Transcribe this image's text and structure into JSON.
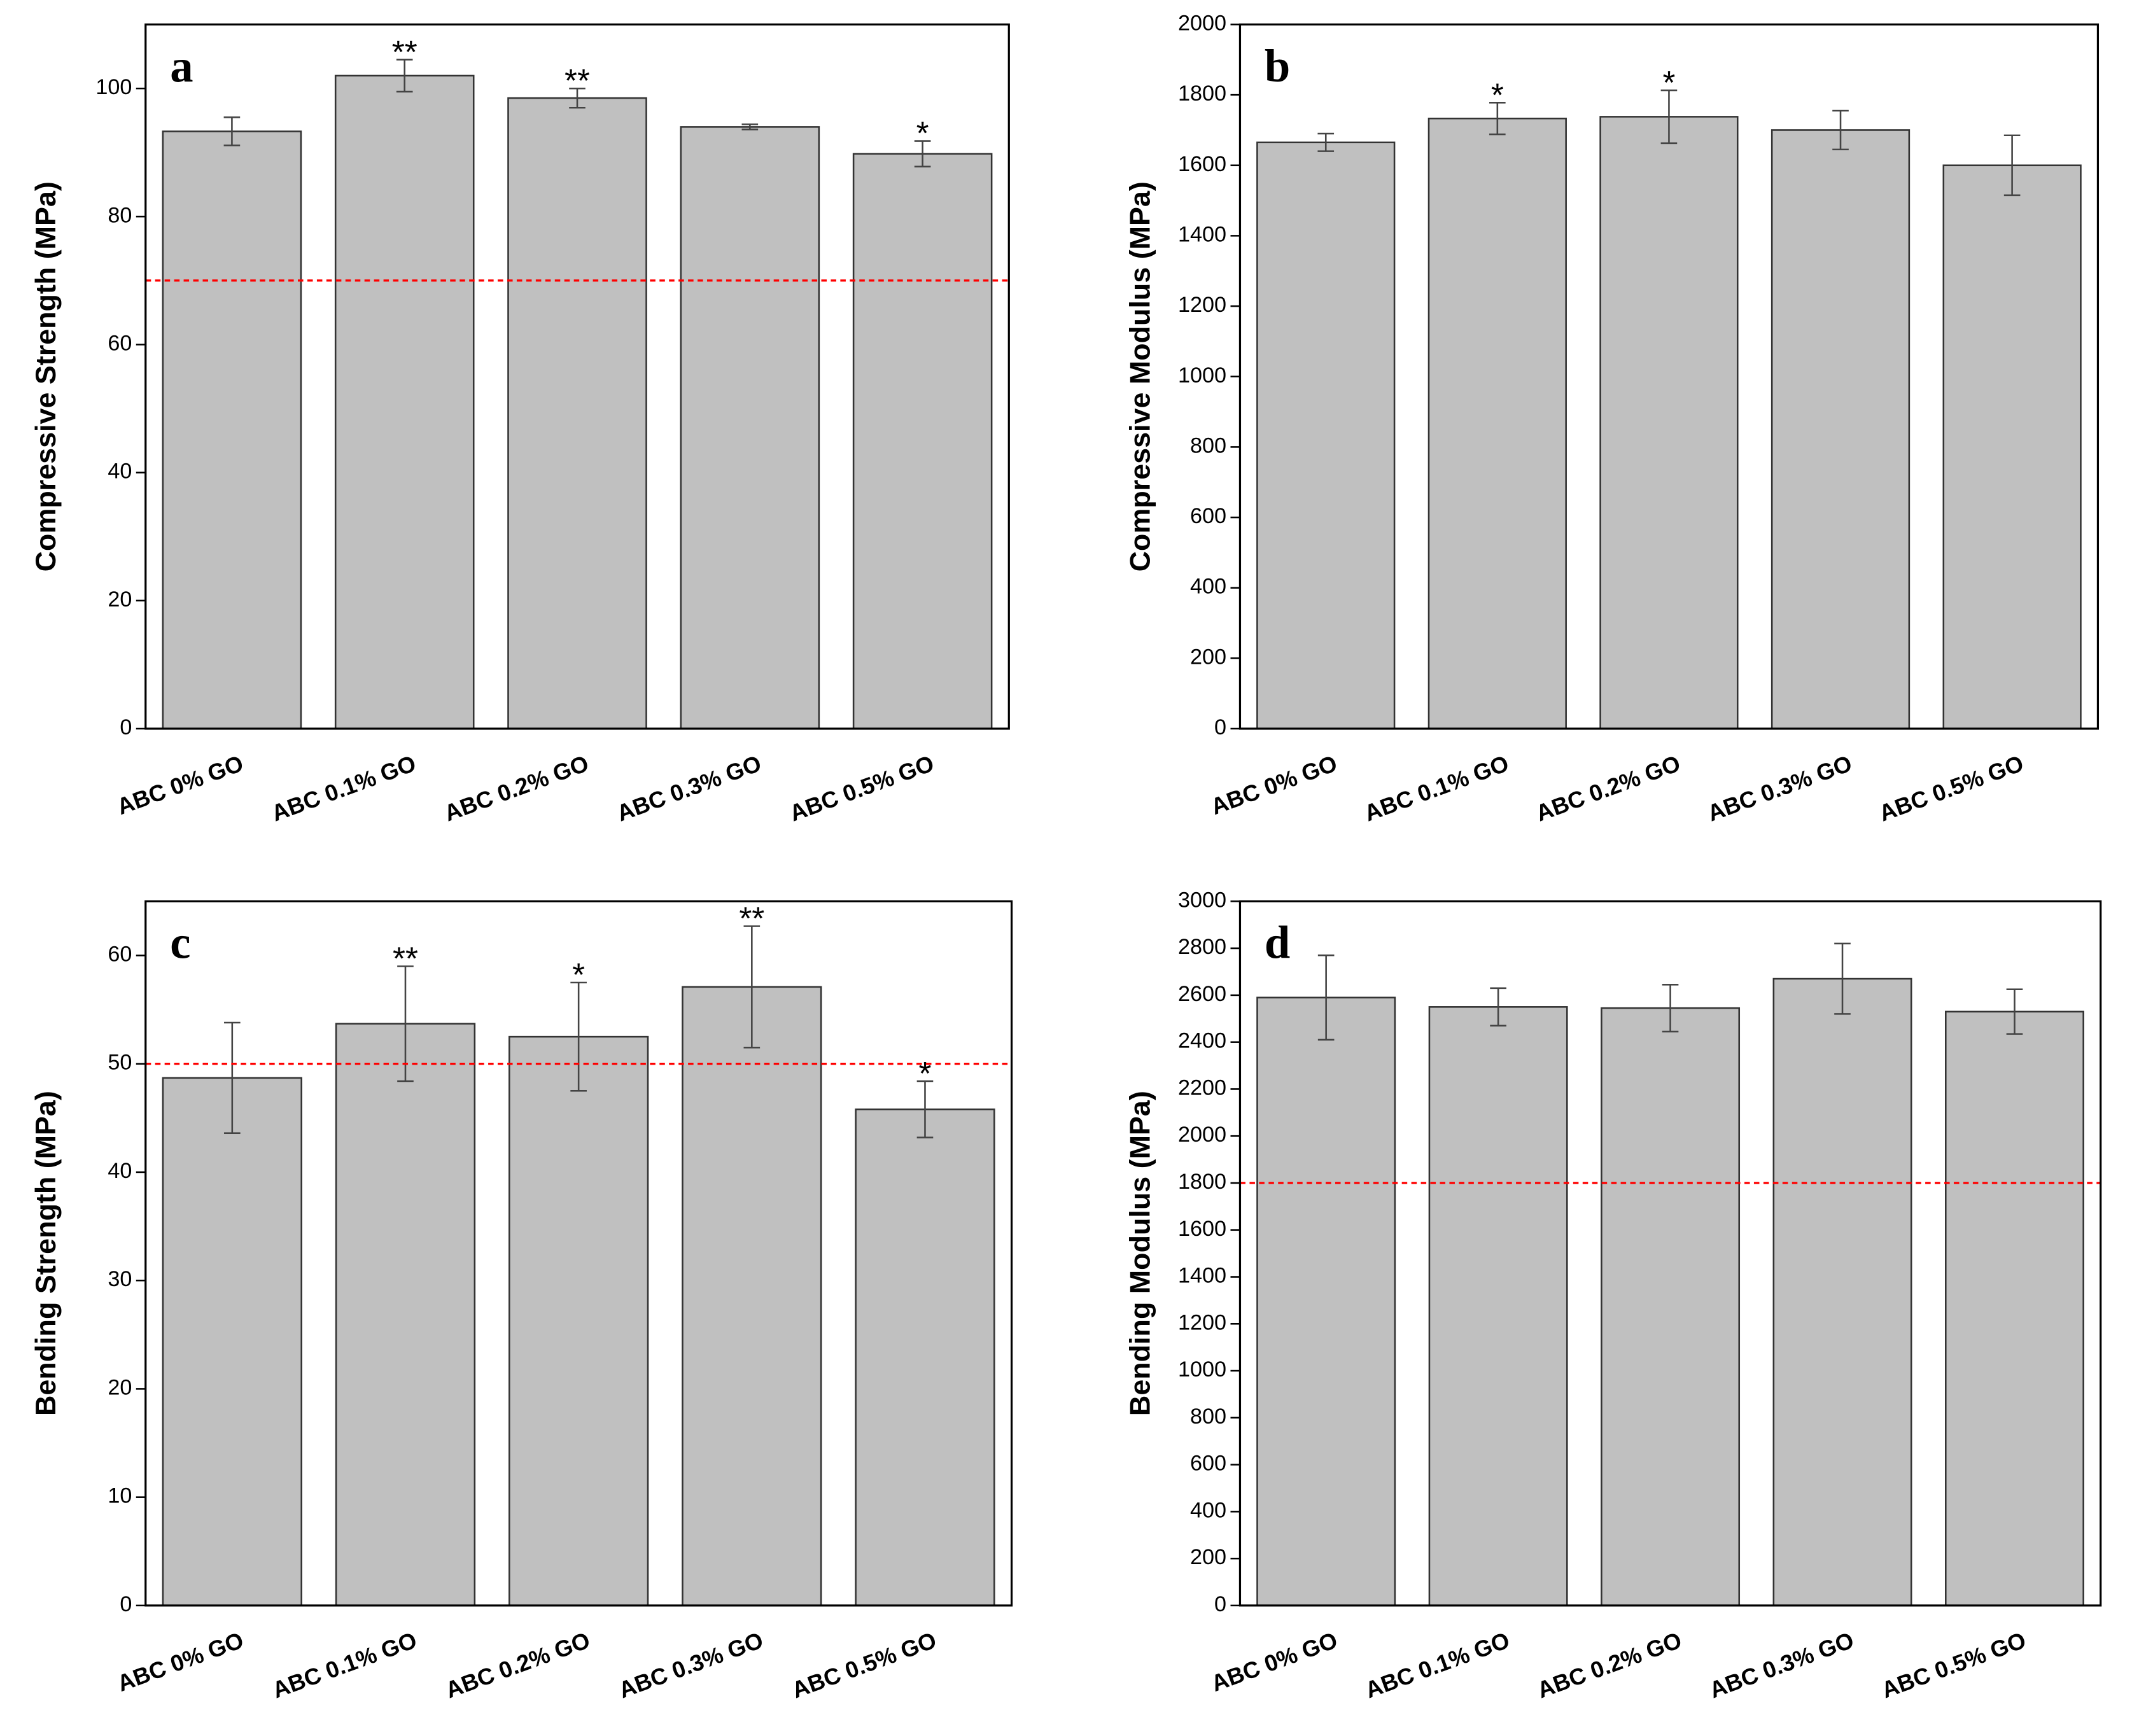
{
  "chart_data": [
    {
      "type": "bar",
      "panel_label": "a",
      "y_label": "Compressive Strength (MPa)",
      "categories": [
        "ABC 0% GO",
        "ABC 0.1% GO",
        "ABC 0.2% GO",
        "ABC 0.3% GO",
        "ABC 0.5% GO"
      ],
      "values": [
        93.3,
        102,
        98.5,
        94,
        89.8
      ],
      "errors": [
        2.2,
        2.5,
        1.5,
        0.4,
        2
      ],
      "annotations": [
        null,
        "**",
        "**",
        null,
        "*"
      ],
      "color": "#c0c0c0",
      "ref_line": 70,
      "ref_color": "#ff0000",
      "ylim": [
        0,
        110
      ],
      "yticks": [
        0,
        20,
        40,
        60,
        80,
        100
      ]
    },
    {
      "type": "bar",
      "panel_label": "b",
      "y_label": "Compressive Modulus (MPa)",
      "categories": [
        "ABC 0% GO",
        "ABC 0.1% GO",
        "ABC 0.2% GO",
        "ABC 0.3% GO",
        "ABC 0.5% GO"
      ],
      "values": [
        1665,
        1733,
        1738,
        1700,
        1600
      ],
      "errors": [
        25,
        45,
        75,
        55,
        85
      ],
      "annotations": [
        null,
        "*",
        "*",
        null,
        null
      ],
      "color": "#c0c0c0",
      "ylim": [
        0,
        2000
      ],
      "yticks": [
        0,
        200,
        400,
        600,
        800,
        1000,
        1200,
        1400,
        1600,
        1800,
        2000
      ]
    },
    {
      "type": "bar",
      "panel_label": "c",
      "y_label": "Bending Strength (MPa)",
      "categories": [
        "ABC 0% GO",
        "ABC 0.1% GO",
        "ABC 0.2% GO",
        "ABC 0.3% GO",
        "ABC 0.5% GO"
      ],
      "values": [
        48.7,
        53.7,
        52.5,
        57.1,
        45.8
      ],
      "errors": [
        5.1,
        5.3,
        5,
        5.6,
        2.6
      ],
      "annotations": [
        null,
        "**",
        "*",
        "**",
        "*"
      ],
      "color": "#c0c0c0",
      "ref_line": 50,
      "ref_color": "#ff0000",
      "ylim": [
        0,
        65
      ],
      "yticks": [
        0,
        10,
        20,
        30,
        40,
        50,
        60
      ]
    },
    {
      "type": "bar",
      "panel_label": "d",
      "y_label": "Bending Modulus (MPa)",
      "categories": [
        "ABC 0% GO",
        "ABC 0.1% GO",
        "ABC 0.2% GO",
        "ABC 0.3% GO",
        "ABC 0.5% GO"
      ],
      "values": [
        2590,
        2550,
        2545,
        2670,
        2530
      ],
      "errors": [
        180,
        80,
        100,
        150,
        95
      ],
      "color": "#c0c0c0",
      "ref_line": 1800,
      "ref_color": "#ff0000",
      "ylim": [
        0,
        3000
      ],
      "yticks": [
        0,
        200,
        400,
        600,
        800,
        1000,
        1200,
        1400,
        1600,
        1800,
        2000,
        2200,
        2400,
        2600,
        2800,
        3000
      ]
    }
  ]
}
